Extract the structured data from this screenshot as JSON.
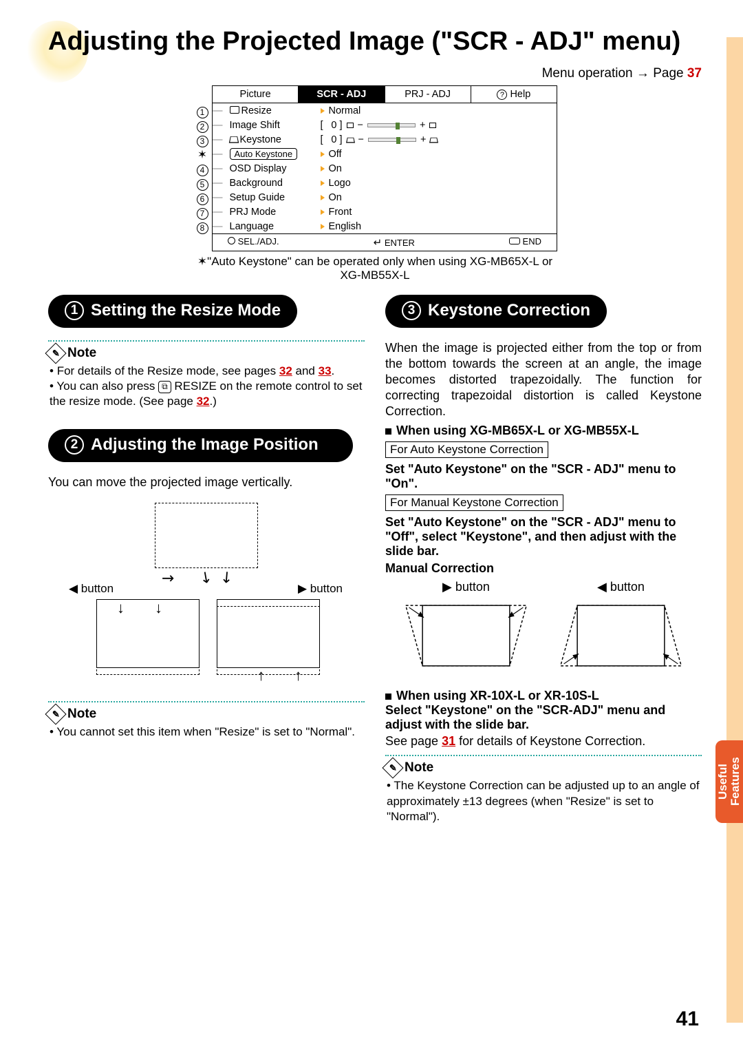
{
  "page_number": "41",
  "side_tab": "Useful\nFeatures",
  "title": "Adjusting the Projected Image (\"SCR - ADJ\" menu)",
  "menu_op": {
    "text": "Menu operation ",
    "arrow": "→",
    "page_word": "Page ",
    "page": "37"
  },
  "tabs": [
    "Picture",
    "SCR - ADJ",
    "PRJ - ADJ",
    "Help"
  ],
  "menu_items": [
    {
      "num": "1",
      "label": "Resize",
      "val": "Normal"
    },
    {
      "num": "2",
      "label": "Image Shift",
      "slider": true,
      "zero": "0"
    },
    {
      "num": "3",
      "label": "Keystone",
      "slider": true,
      "zero": "0",
      "keystone": true
    },
    {
      "star": true,
      "label": "Auto Keystone",
      "pill": true,
      "val": "Off"
    },
    {
      "num": "4",
      "label": "OSD Display",
      "val": "On"
    },
    {
      "num": "5",
      "label": "Background",
      "val": "Logo"
    },
    {
      "num": "6",
      "label": "Setup Guide",
      "val": "On"
    },
    {
      "num": "7",
      "label": "PRJ Mode",
      "val": "Front"
    },
    {
      "num": "8",
      "label": "Language",
      "val": "English"
    }
  ],
  "footer": {
    "sel": "SEL./ADJ.",
    "enter": "ENTER",
    "end": "END"
  },
  "ask_note": "\"Auto Keystone\" can be operated only when using XG-MB65X-L or XG-MB55X-L",
  "sections": {
    "s1": {
      "num": "1",
      "title": "Setting the Resize Mode",
      "note_h": "Note",
      "note_items": [
        "For details of the Resize mode, see pages <b>32</b> and <b>33</b>.",
        "You can also press <btn>RESIZE</btn> RESIZE on the remote control to set the resize mode. (See page <b>32</b>.)"
      ]
    },
    "s2": {
      "num": "2",
      "title": "Adjusting the Image Position",
      "body": "You can move the projected image vertically.",
      "btn_l": "◀ button",
      "btn_r": "▶ button",
      "note_h": "Note",
      "note_items": [
        "You cannot set this item when \"Resize\" is set to \"Normal\"."
      ]
    },
    "s3": {
      "num": "3",
      "title": "Keystone Correction",
      "body": "When the image is projected either from the top or from the bottom towards the screen at an angle, the image becomes distorted trapezoidally. The function for correcting trapezoidal distortion is called Keystone Correction.",
      "h_when1": "When using XG-MB65X-L or XG-MB55X-L",
      "box_auto": "For Auto Keystone Correction",
      "set_auto_on": "Set \"Auto Keystone\" on the \"SCR - ADJ\" menu to \"On\".",
      "box_manual": "For Manual Keystone Correction",
      "set_auto_off": "Set \"Auto Keystone\" on the \"SCR - ADJ\" menu to \"Off\", select \"Keystone\", and then adjust with the slide bar.",
      "manual_h": "Manual Correction",
      "mc_btn_r": "▶ button",
      "mc_btn_l": "◀ button",
      "h_when2": "When using XR-10X-L or XR-10S-L",
      "select_k": "Select \"Keystone\" on the \"SCR-ADJ\" menu and adjust with the slide bar.",
      "seepg": "See page ",
      "seepg_n": "31",
      "seepg_rest": " for details of Keystone Correction.",
      "note_h": "Note",
      "note_items": [
        "The Keystone Correction can be adjusted up to an angle of approximately ±13 degrees (when \"Resize\" is set to \"Normal\")."
      ]
    }
  }
}
